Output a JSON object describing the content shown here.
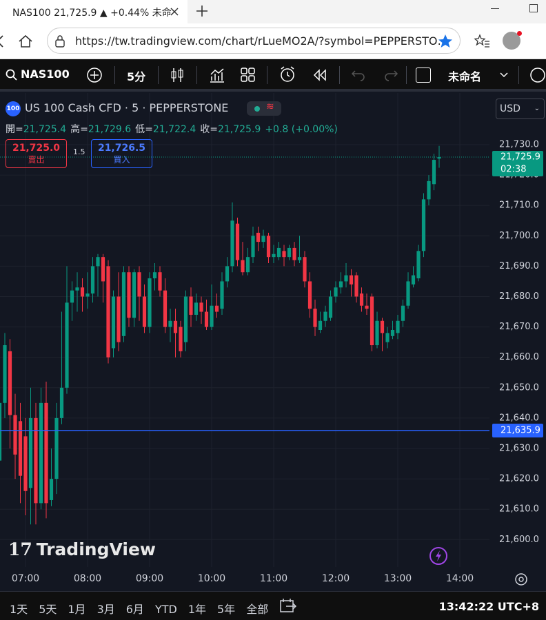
{
  "browser": {
    "tab_title": "NAS100 21,725.9 ▲ +0.44% 未命",
    "url": "https://tw.tradingview.com/chart/rLueMO2A/?symbol=PEPPERSTO…"
  },
  "toolbar": {
    "symbol": "NAS100",
    "interval": "5分",
    "layout_name": "未命名"
  },
  "chart_header": {
    "instrument": "US 100 Cash CFD · 5 · PEPPERSTONE",
    "logo": "100",
    "currency": "USD",
    "ohlc": [
      {
        "label": "開=",
        "value": "21,725.4"
      },
      {
        "label": "高=",
        "value": "21,729.6"
      },
      {
        "label": "低=",
        "value": "21,722.4"
      },
      {
        "label": "收=",
        "value": "21,725.9"
      }
    ],
    "change": "+0.8 (+0.00%)",
    "sell": {
      "price": "21,725.0",
      "label": "賣出"
    },
    "spread": "1.5",
    "buy": {
      "price": "21,726.5",
      "label": "買入"
    }
  },
  "watermark": "TradingView",
  "chart_data": {
    "type": "candlestick",
    "up_color": "#089981",
    "down_color": "#f23645",
    "grid": true,
    "categories": [
      null,
      null,
      null,
      null,
      null,
      "07:00",
      null,
      null,
      null,
      null,
      null,
      null,
      null,
      null,
      null,
      null,
      null,
      "08:00",
      null,
      null,
      null,
      null,
      null,
      null,
      null,
      null,
      null,
      null,
      null,
      "09:00",
      null,
      null,
      null,
      null,
      null,
      null,
      null,
      null,
      null,
      null,
      null,
      "10:00",
      null,
      null,
      null,
      null,
      null,
      null,
      null,
      null,
      null,
      null,
      null,
      "11:00",
      null,
      null,
      null,
      null,
      null,
      null,
      null,
      null,
      null,
      null,
      null,
      "12:00",
      null,
      null,
      null,
      null,
      null,
      null,
      null,
      null,
      null,
      null,
      null,
      "13:00",
      null,
      null,
      null,
      null,
      null,
      null,
      null,
      null,
      null,
      null,
      null,
      "14:00"
    ],
    "open": [
      21626,
      21645,
      21662,
      21641,
      21639,
      21634,
      21617,
      21640,
      21612,
      21645,
      21613,
      21620,
      21640,
      21650,
      21678,
      21682,
      21683,
      21680,
      21681,
      21690,
      21693,
      21690,
      21663,
      21680,
      21667,
      21688,
      21673,
      21688,
      21680,
      21670,
      21686,
      21688,
      21682,
      21670,
      21672,
      21670,
      21665,
      21680,
      21674,
      21678,
      21675,
      21670,
      21677,
      21676,
      21685,
      21690,
      21704,
      21692,
      21688,
      21693,
      21701,
      21698,
      21700,
      21693,
      21693,
      21695,
      21693,
      21696,
      21692,
      21693,
      21685,
      21676,
      21669,
      21672,
      21673,
      21680,
      21683,
      21685,
      21687,
      21687,
      21681,
      21677,
      21680,
      21664,
      21672,
      21665,
      21667,
      21668,
      21672,
      21677,
      21684,
      21686,
      21695,
      21712,
      21717,
      21725.4,
      null,
      null,
      null,
      null
    ],
    "high": [
      21648,
      21668,
      21666,
      21648,
      21645,
      21640,
      21650,
      21645,
      21650,
      21652,
      21630,
      21645,
      21675,
      21690,
      21685,
      21688,
      21686,
      21688,
      21693,
      21694,
      21694,
      21692,
      21682,
      21688,
      21690,
      21690,
      21689,
      21690,
      21684,
      21688,
      21691,
      21690,
      21686,
      21676,
      21676,
      21672,
      21682,
      21683,
      21681,
      21680,
      21679,
      21684,
      21681,
      21688,
      21693,
      21711,
      21706,
      21698,
      21696,
      21703,
      21703,
      21702,
      21701,
      21697,
      21698,
      21697,
      21697,
      21698,
      21700,
      21695,
      21688,
      21679,
      21675,
      21677,
      21682,
      21685,
      21688,
      21691,
      21689,
      21688,
      21683,
      21681,
      21681,
      21675,
      21673,
      21670,
      21672,
      21674,
      21679,
      21688,
      21690,
      21697,
      21714,
      21720,
      21727,
      21729.6,
      null,
      null,
      null,
      null
    ],
    "low": [
      21610,
      21640,
      21630,
      21620,
      21612,
      21608,
      21605,
      21605,
      21610,
      21607,
      21611,
      21615,
      21638,
      21648,
      21672,
      21675,
      21675,
      21676,
      21678,
      21680,
      21678,
      21658,
      21660,
      21662,
      21665,
      21670,
      21670,
      21672,
      21668,
      21668,
      21682,
      21680,
      21668,
      21665,
      21660,
      21660,
      21662,
      21670,
      21672,
      21671,
      21669,
      21669,
      21673,
      21674,
      21683,
      21688,
      21690,
      21687,
      21687,
      21691,
      21695,
      21696,
      21691,
      21691,
      21692,
      21690,
      21692,
      21690,
      21691,
      21683,
      21673,
      21667,
      21668,
      21670,
      21672,
      21678,
      21681,
      21683,
      21680,
      21678,
      21675,
      21674,
      21662,
      21663,
      21662,
      21663,
      21666,
      21666,
      21670,
      21676,
      21683,
      21685,
      21693,
      21710,
      21715,
      21722.4,
      null,
      null,
      null,
      null
    ],
    "close": [
      21645,
      21664,
      21641,
      21628,
      21621,
      21616,
      21640,
      21612,
      21645,
      21612,
      21620,
      21640,
      21650,
      21678,
      21682,
      21683,
      21680,
      21681,
      21690,
      21693,
      21685,
      21660,
      21680,
      21665,
      21688,
      21673,
      21688,
      21680,
      21670,
      21686,
      21688,
      21682,
      21670,
      21672,
      21668,
      21662,
      21680,
      21674,
      21678,
      21675,
      21670,
      21677,
      21675,
      21685,
      21690,
      21705,
      21692,
      21688,
      21693,
      21700,
      21698,
      21700,
      21693,
      21694,
      21696,
      21693,
      21696,
      21692,
      21693,
      21685,
      21676,
      21670,
      21672,
      21675,
      21680,
      21683,
      21685,
      21687,
      21684,
      21680,
      21677,
      21676,
      21664,
      21672,
      21668,
      21668,
      21669,
      21672,
      21677,
      21685,
      21687,
      21695,
      21712,
      21718,
      21725,
      21725.9,
      null,
      null,
      null,
      null
    ],
    "ylim": [
      21591,
      21747
    ],
    "yticks": [
      {
        "value": 21600,
        "label": "21,600.0"
      },
      {
        "value": 21610,
        "label": "21,610.0"
      },
      {
        "value": 21620,
        "label": "21,620.0"
      },
      {
        "value": 21630,
        "label": "21,630.0"
      },
      {
        "value": 21640,
        "label": "21,640.0"
      },
      {
        "value": 21650,
        "label": "21,650.0"
      },
      {
        "value": 21660,
        "label": "21,660.0"
      },
      {
        "value": 21670,
        "label": "21,670.0"
      },
      {
        "value": 21680,
        "label": "21,680.0"
      },
      {
        "value": 21690,
        "label": "21,690.0"
      },
      {
        "value": 21700,
        "label": "21,700.0"
      },
      {
        "value": 21710,
        "label": "21,710.0"
      },
      {
        "value": 21720,
        "label": "21,720.0"
      },
      {
        "value": 21730,
        "label": "21,730.0"
      }
    ],
    "price_lines": [
      {
        "value": 21725.9,
        "label": "21,725.9",
        "sublabel": "02:38",
        "color": "#089981",
        "style": "dotted"
      },
      {
        "value": 21635.9,
        "label": "21,635.9",
        "color": "#2962ff",
        "style": "solid"
      }
    ]
  },
  "bottom_bar": {
    "ranges": [
      "1天",
      "5天",
      "1月",
      "3月",
      "6月",
      "YTD",
      "1年",
      "5年",
      "全部"
    ],
    "time": "13:42:22 UTC+8"
  }
}
